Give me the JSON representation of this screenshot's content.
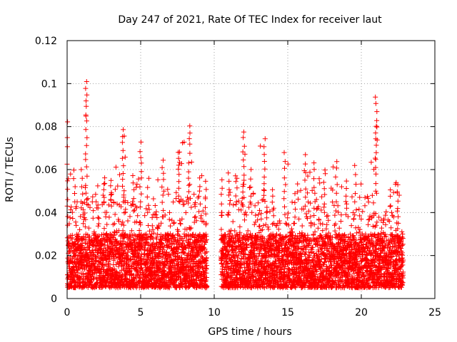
{
  "chart_data": {
    "type": "scatter",
    "title": "Day 247 of 2021, Rate Of TEC Index for receiver laut",
    "xlabel": "GPS time / hours",
    "ylabel": "ROTI / TECUs",
    "xlim": [
      0,
      25
    ],
    "ylim": [
      0,
      0.12
    ],
    "xticks": [
      "0",
      "5",
      "10",
      "15",
      "20",
      "25"
    ],
    "yticks": [
      "0",
      "0.02",
      "0.04",
      "0.06",
      "0.08",
      "0.1",
      "0.12"
    ],
    "grid": true,
    "marker": "+",
    "series_color": "#ff0000",
    "data_gaps_hours": [
      [
        0.0,
        0.02
      ],
      [
        9.5,
        10.45
      ],
      [
        22.85,
        25.0
      ]
    ],
    "baseline_band": [
      0.005,
      0.03
    ],
    "envelope": [
      {
        "t": 0.0,
        "base_max": 0.04,
        "peak": 0.084
      },
      {
        "t": 0.5,
        "base_max": 0.045,
        "peak": 0.062
      },
      {
        "t": 1.0,
        "base_max": 0.045,
        "peak": 0.062
      },
      {
        "t": 1.3,
        "base_max": 0.046,
        "peak": 0.102
      },
      {
        "t": 1.7,
        "base_max": 0.045,
        "peak": 0.052
      },
      {
        "t": 2.5,
        "base_max": 0.045,
        "peak": 0.058
      },
      {
        "t": 3.0,
        "base_max": 0.043,
        "peak": 0.057
      },
      {
        "t": 3.8,
        "base_max": 0.045,
        "peak": 0.08
      },
      {
        "t": 4.5,
        "base_max": 0.044,
        "peak": 0.06
      },
      {
        "t": 5.0,
        "base_max": 0.045,
        "peak": 0.074
      },
      {
        "t": 5.5,
        "base_max": 0.04,
        "peak": 0.06
      },
      {
        "t": 6.5,
        "base_max": 0.038,
        "peak": 0.065
      },
      {
        "t": 7.0,
        "base_max": 0.04,
        "peak": 0.048
      },
      {
        "t": 7.6,
        "base_max": 0.045,
        "peak": 0.071
      },
      {
        "t": 8.3,
        "base_max": 0.046,
        "peak": 0.081
      },
      {
        "t": 9.0,
        "base_max": 0.044,
        "peak": 0.058
      },
      {
        "t": 9.4,
        "base_max": 0.035,
        "peak": 0.057
      },
      {
        "t": 10.5,
        "base_max": 0.04,
        "peak": 0.058
      },
      {
        "t": 11.0,
        "base_max": 0.04,
        "peak": 0.062
      },
      {
        "t": 11.5,
        "base_max": 0.045,
        "peak": 0.059
      },
      {
        "t": 12.0,
        "base_max": 0.043,
        "peak": 0.08
      },
      {
        "t": 12.5,
        "base_max": 0.04,
        "peak": 0.062
      },
      {
        "t": 13.4,
        "base_max": 0.048,
        "peak": 0.076
      },
      {
        "t": 14.0,
        "base_max": 0.035,
        "peak": 0.052
      },
      {
        "t": 14.8,
        "base_max": 0.035,
        "peak": 0.068
      },
      {
        "t": 15.5,
        "base_max": 0.035,
        "peak": 0.05
      },
      {
        "t": 16.2,
        "base_max": 0.043,
        "peak": 0.069
      },
      {
        "t": 16.8,
        "base_max": 0.042,
        "peak": 0.064
      },
      {
        "t": 17.5,
        "base_max": 0.04,
        "peak": 0.06
      },
      {
        "t": 18.3,
        "base_max": 0.045,
        "peak": 0.065
      },
      {
        "t": 19.0,
        "base_max": 0.042,
        "peak": 0.058
      },
      {
        "t": 19.6,
        "base_max": 0.045,
        "peak": 0.065
      },
      {
        "t": 20.3,
        "base_max": 0.043,
        "peak": 0.048
      },
      {
        "t": 21.0,
        "base_max": 0.05,
        "peak": 0.096
      },
      {
        "t": 21.5,
        "base_max": 0.042,
        "peak": 0.05
      },
      {
        "t": 22.0,
        "base_max": 0.04,
        "peak": 0.054
      },
      {
        "t": 22.5,
        "base_max": 0.035,
        "peak": 0.057
      },
      {
        "t": 22.8,
        "base_max": 0.03,
        "peak": 0.03
      }
    ]
  }
}
